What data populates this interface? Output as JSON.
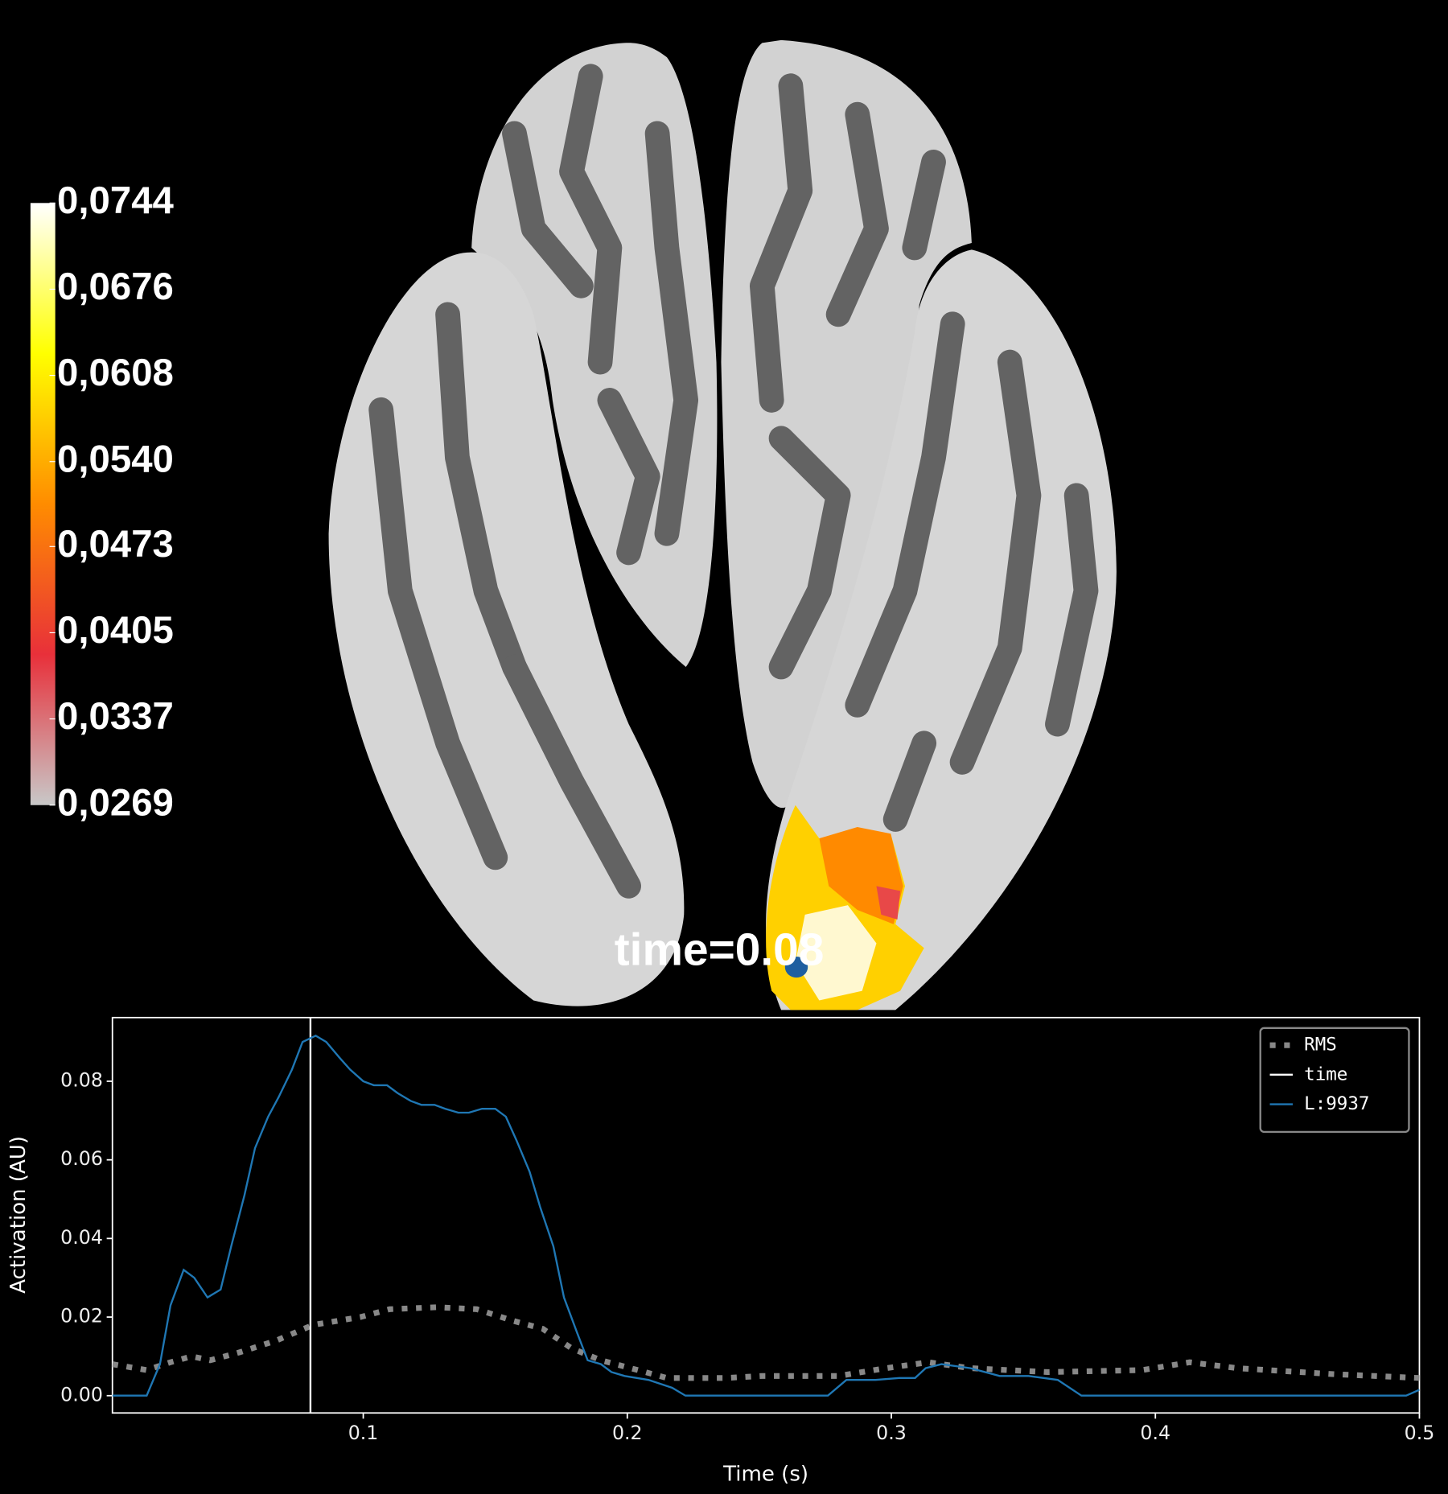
{
  "chart_data": {
    "type": "line",
    "annotation": "time=0.08",
    "colorbar": {
      "lim": [
        0.0269,
        0.0744
      ],
      "colors": [
        "#c8c8c8",
        "#e8303a",
        "#ff8c00",
        "#ffff00",
        "#ffffff"
      ],
      "ticks": [
        {
          "value": 0.0744,
          "label": "0,0744"
        },
        {
          "value": 0.0676,
          "label": "0,0676"
        },
        {
          "value": 0.0608,
          "label": "0,0608"
        },
        {
          "value": 0.054,
          "label": "0,0540"
        },
        {
          "value": 0.0473,
          "label": "0,0473"
        },
        {
          "value": 0.0405,
          "label": "0,0405"
        },
        {
          "value": 0.0337,
          "label": "0,0337"
        },
        {
          "value": 0.0269,
          "label": "0,0269"
        }
      ]
    },
    "xlabel": "Time (s)",
    "ylabel": "Activation (AU)",
    "xlim": [
      0.005,
      0.5
    ],
    "ylim": [
      -0.0044,
      0.0962
    ],
    "xticks": [
      0.1,
      0.2,
      0.3,
      0.4,
      0.5
    ],
    "yticks": [
      {
        "value": 0,
        "label": "0.00"
      },
      {
        "value": 0.02,
        "label": "0.02"
      },
      {
        "value": 0.04,
        "label": "0.04"
      },
      {
        "value": 0.06,
        "label": "0.06"
      },
      {
        "value": 0.08,
        "label": "0.08"
      }
    ],
    "legend_position": "upper right",
    "vlines": [
      {
        "name": "time",
        "x": 0.08,
        "color": "#ffffff"
      }
    ],
    "series": [
      {
        "name": "RMS",
        "color": "#888888",
        "dashed": true,
        "x": [
          0.005,
          0.018,
          0.027,
          0.035,
          0.042,
          0.053,
          0.067,
          0.081,
          0.099,
          0.11,
          0.128,
          0.143,
          0.157,
          0.168,
          0.179,
          0.19,
          0.204,
          0.215,
          0.237,
          0.251,
          0.28,
          0.298,
          0.314,
          0.33,
          0.359,
          0.395,
          0.413,
          0.431,
          0.467,
          0.5
        ],
        "values": [
          0.008,
          0.0065,
          0.0085,
          0.01,
          0.009,
          0.011,
          0.014,
          0.018,
          0.02,
          0.022,
          0.0225,
          0.022,
          0.019,
          0.017,
          0.012,
          0.009,
          0.0065,
          0.0045,
          0.0045,
          0.005,
          0.005,
          0.007,
          0.0085,
          0.007,
          0.006,
          0.0065,
          0.0085,
          0.007,
          0.0055,
          0.0045
        ]
      },
      {
        "name": "L:9937",
        "color": "#1f77b4",
        "dashed": false,
        "x": [
          0.005,
          0.018,
          0.023,
          0.027,
          0.032,
          0.036,
          0.041,
          0.046,
          0.05,
          0.055,
          0.059,
          0.064,
          0.068,
          0.073,
          0.077,
          0.082,
          0.086,
          0.091,
          0.095,
          0.1,
          0.104,
          0.109,
          0.113,
          0.118,
          0.122,
          0.127,
          0.131,
          0.136,
          0.14,
          0.145,
          0.15,
          0.154,
          0.158,
          0.163,
          0.167,
          0.172,
          0.176,
          0.181,
          0.185,
          0.19,
          0.194,
          0.199,
          0.208,
          0.217,
          0.222,
          0.276,
          0.283,
          0.294,
          0.303,
          0.309,
          0.313,
          0.319,
          0.33,
          0.341,
          0.352,
          0.363,
          0.372,
          0.495,
          0.5
        ],
        "values": [
          0,
          0,
          0.008,
          0.023,
          0.032,
          0.03,
          0.025,
          0.027,
          0.038,
          0.051,
          0.063,
          0.071,
          0.076,
          0.083,
          0.09,
          0.0916,
          0.09,
          0.086,
          0.083,
          0.08,
          0.079,
          0.079,
          0.077,
          0.075,
          0.074,
          0.074,
          0.073,
          0.072,
          0.072,
          0.073,
          0.073,
          0.071,
          0.065,
          0.057,
          0.048,
          0.038,
          0.025,
          0.016,
          0.009,
          0.008,
          0.006,
          0.005,
          0.004,
          0.002,
          0,
          0,
          0.004,
          0.004,
          0.0045,
          0.0045,
          0.007,
          0.008,
          0.007,
          0.005,
          0.005,
          0.004,
          0,
          0,
          0.0015
        ]
      }
    ]
  }
}
